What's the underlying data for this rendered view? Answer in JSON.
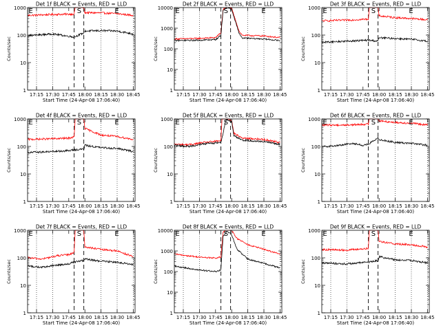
{
  "chart_data": [
    {
      "type": "line",
      "title": "Det 1f BLACK = Events, RED = LLD",
      "xlabel": "Start Time (24-Apr-08 17:06:40)",
      "ylabel": "Counts/sec",
      "yscale": "log",
      "ylim": [
        1,
        1000
      ],
      "xlim": [
        "17:06:40",
        "18:46:40"
      ],
      "x_ticks": [
        "17:15",
        "17:30",
        "17:45",
        "18:00",
        "18:15",
        "18:30",
        "18:45"
      ],
      "y_ticks": [
        "1",
        "10",
        "100",
        "1000"
      ],
      "markers": [
        {
          "label": "E",
          "x": "17:07"
        },
        {
          "label": "S",
          "x": "17:52"
        },
        {
          "label": "E",
          "x": "18:27"
        }
      ],
      "series": [
        {
          "color": "#ff0000",
          "x": [
            "17:07",
            "17:30",
            "17:50",
            "17:51",
            "17:53",
            "17:59",
            "18:00",
            "18:15",
            "18:30",
            "18:45"
          ],
          "values": [
            520,
            560,
            580,
            1200,
            1100,
            1000,
            650,
            640,
            600,
            520
          ]
        },
        {
          "color": "#000000",
          "x": [
            "17:07",
            "17:30",
            "17:50",
            "17:59",
            "18:00",
            "18:15",
            "18:30",
            "18:45"
          ],
          "values": [
            95,
            110,
            85,
            120,
            140,
            145,
            140,
            110
          ]
        }
      ]
    },
    {
      "type": "line",
      "title": "Det 2f BLACK = Events, RED = LLD",
      "xlabel": "Start Time (24-Apr-08 17:06:40)",
      "ylabel": "Counts/sec",
      "yscale": "log",
      "ylim": [
        1,
        10000
      ],
      "xlim": [
        "17:06:40",
        "18:46:40"
      ],
      "x_ticks": [
        "17:15",
        "17:30",
        "17:45",
        "18:00",
        "18:15",
        "18:30",
        "18:45"
      ],
      "y_ticks": [
        "1",
        "10",
        "100",
        "1000",
        "10000"
      ],
      "markers": [
        {
          "label": "E",
          "x": "17:07"
        },
        {
          "label": "S",
          "x": "17:52"
        },
        {
          "label": "E",
          "x": "18:27"
        }
      ],
      "series": [
        {
          "color": "#ff0000",
          "x": [
            "17:07",
            "17:30",
            "17:45",
            "17:50",
            "17:52",
            "17:56",
            "18:00",
            "18:03",
            "18:07",
            "18:10",
            "18:30",
            "18:45"
          ],
          "values": [
            300,
            320,
            350,
            600,
            8000,
            12000,
            9000,
            3000,
            700,
            450,
            420,
            350
          ]
        },
        {
          "color": "#000000",
          "x": [
            "17:07",
            "17:30",
            "17:45",
            "17:50",
            "17:52",
            "17:56",
            "18:00",
            "18:03",
            "18:07",
            "18:10",
            "18:30",
            "18:45"
          ],
          "values": [
            250,
            260,
            280,
            450,
            7000,
            11000,
            8000,
            2500,
            550,
            330,
            300,
            250
          ]
        }
      ]
    },
    {
      "type": "line",
      "title": "Det 3f BLACK = Events, RED = LLD",
      "xlabel": "Start Time (24-Apr-08 17:06:40)",
      "ylabel": "Counts/sec",
      "yscale": "log",
      "ylim": [
        1,
        1000
      ],
      "xlim": [
        "17:06:40",
        "18:46:40"
      ],
      "x_ticks": [
        "17:15",
        "17:30",
        "17:45",
        "18:00",
        "18:15",
        "18:30",
        "18:45"
      ],
      "y_ticks": [
        "1",
        "10",
        "100",
        "1000"
      ],
      "markers": [
        {
          "label": "E",
          "x": "17:07"
        },
        {
          "label": "S",
          "x": "17:52"
        },
        {
          "label": "E",
          "x": "18:27"
        }
      ],
      "series": [
        {
          "color": "#ff0000",
          "x": [
            "17:07",
            "17:30",
            "17:50",
            "17:51",
            "17:53",
            "17:59",
            "18:00",
            "18:15",
            "18:30",
            "18:45"
          ],
          "values": [
            330,
            350,
            380,
            1100,
            1100,
            1050,
            500,
            430,
            400,
            360
          ]
        },
        {
          "color": "#000000",
          "x": [
            "17:07",
            "17:30",
            "17:50",
            "17:59",
            "18:00",
            "18:15",
            "18:30",
            "18:45"
          ],
          "values": [
            55,
            60,
            65,
            60,
            80,
            75,
            70,
            60
          ]
        }
      ]
    },
    {
      "type": "line",
      "title": "Det 4f BLACK = Events, RED = LLD",
      "xlabel": "Start Time (24-Apr-08 17:06:40)",
      "ylabel": "Counts/sec",
      "yscale": "log",
      "ylim": [
        1,
        1000
      ],
      "xlim": [
        "17:06:40",
        "18:46:40"
      ],
      "x_ticks": [
        "17:15",
        "17:30",
        "17:45",
        "18:00",
        "18:15",
        "18:30",
        "18:45"
      ],
      "y_ticks": [
        "1",
        "10",
        "100",
        "1000"
      ],
      "markers": [
        {
          "label": "E",
          "x": "17:07"
        },
        {
          "label": "S",
          "x": "17:52"
        },
        {
          "label": "E",
          "x": "18:27"
        }
      ],
      "series": [
        {
          "color": "#ff0000",
          "x": [
            "17:07",
            "17:30",
            "17:45",
            "17:50",
            "17:51",
            "17:59",
            "18:00",
            "18:15",
            "18:30",
            "18:45"
          ],
          "values": [
            180,
            190,
            200,
            220,
            1100,
            1100,
            450,
            260,
            230,
            180
          ]
        },
        {
          "color": "#000000",
          "x": [
            "17:07",
            "17:30",
            "17:45",
            "17:50",
            "17:59",
            "18:00",
            "18:15",
            "18:30",
            "18:45"
          ],
          "values": [
            60,
            65,
            70,
            75,
            80,
            110,
            90,
            85,
            65
          ]
        }
      ]
    },
    {
      "type": "line",
      "title": "Det 5f BLACK = Events, RED = LLD",
      "xlabel": "Start Time (24-Apr-08 17:06:40)",
      "ylabel": "Counts/sec",
      "yscale": "log",
      "ylim": [
        1,
        1000
      ],
      "xlim": [
        "17:06:40",
        "18:46:40"
      ],
      "x_ticks": [
        "17:15",
        "17:30",
        "17:45",
        "18:00",
        "18:15",
        "18:30",
        "18:45"
      ],
      "y_ticks": [
        "1",
        "10",
        "100",
        "1000"
      ],
      "markers": [
        {
          "label": "E",
          "x": "17:07"
        },
        {
          "label": "S",
          "x": "17:52"
        },
        {
          "label": "E",
          "x": "18:27"
        }
      ],
      "series": [
        {
          "color": "#ff0000",
          "x": [
            "17:07",
            "17:20",
            "17:35",
            "17:50",
            "17:51",
            "17:55",
            "18:00",
            "18:02",
            "18:10",
            "18:30",
            "18:45"
          ],
          "values": [
            120,
            115,
            140,
            160,
            1100,
            1100,
            900,
            300,
            200,
            180,
            140
          ]
        },
        {
          "color": "#000000",
          "x": [
            "17:07",
            "17:20",
            "17:35",
            "17:50",
            "17:55",
            "18:00",
            "18:02",
            "18:10",
            "18:30",
            "18:45"
          ],
          "values": [
            110,
            100,
            125,
            140,
            1000,
            800,
            250,
            170,
            150,
            120
          ]
        }
      ]
    },
    {
      "type": "line",
      "title": "Det 6f BLACK = Events, RED = LLD",
      "xlabel": "Start Time (24-Apr-08 17:06:40)",
      "ylabel": "Counts/sec",
      "yscale": "log",
      "ylim": [
        1,
        1000
      ],
      "xlim": [
        "17:06:40",
        "18:46:40"
      ],
      "x_ticks": [
        "17:15",
        "17:30",
        "17:45",
        "18:00",
        "18:15",
        "18:30",
        "18:45"
      ],
      "y_ticks": [
        "1",
        "10",
        "100",
        "1000"
      ],
      "markers": [
        {
          "label": "E",
          "x": "17:07"
        },
        {
          "label": "S",
          "x": "17:52"
        },
        {
          "label": "E",
          "x": "18:27"
        }
      ],
      "series": [
        {
          "color": "#ff0000",
          "x": [
            "17:07",
            "17:30",
            "17:50",
            "17:51",
            "17:53",
            "17:59",
            "18:00",
            "18:15",
            "18:30",
            "18:45"
          ],
          "values": [
            600,
            600,
            650,
            1100,
            1100,
            1050,
            850,
            750,
            700,
            600
          ]
        },
        {
          "color": "#000000",
          "x": [
            "17:07",
            "17:20",
            "17:35",
            "17:45",
            "17:50",
            "17:59",
            "18:00",
            "18:15",
            "18:30",
            "18:45"
          ],
          "values": [
            100,
            105,
            130,
            110,
            120,
            200,
            180,
            140,
            130,
            110
          ]
        }
      ]
    },
    {
      "type": "line",
      "title": "Det 7f BLACK = Events, RED = LLD",
      "xlabel": "Start Time (24-Apr-08 17:06:40)",
      "ylabel": "Counts/sec",
      "yscale": "log",
      "ylim": [
        1,
        1000
      ],
      "xlim": [
        "17:06:40",
        "18:46:40"
      ],
      "x_ticks": [
        "17:15",
        "17:30",
        "17:45",
        "18:00",
        "18:15",
        "18:30",
        "18:45"
      ],
      "y_ticks": [
        "1",
        "10",
        "100",
        "1000"
      ],
      "markers": [
        {
          "label": "E",
          "x": "17:07"
        },
        {
          "label": "S",
          "x": "17:52"
        },
        {
          "label": "E",
          "x": "18:27"
        }
      ],
      "series": [
        {
          "color": "#ff0000",
          "x": [
            "17:07",
            "17:20",
            "17:35",
            "17:45",
            "17:50",
            "17:51",
            "17:59",
            "18:00",
            "18:15",
            "18:30",
            "18:45"
          ],
          "values": [
            100,
            90,
            120,
            130,
            160,
            1100,
            1100,
            250,
            200,
            180,
            110
          ]
        },
        {
          "color": "#000000",
          "x": [
            "17:07",
            "17:20",
            "17:35",
            "17:45",
            "17:50",
            "17:59",
            "18:00",
            "18:15",
            "18:30",
            "18:45"
          ],
          "values": [
            50,
            45,
            55,
            60,
            70,
            80,
            90,
            75,
            70,
            55
          ]
        }
      ]
    },
    {
      "type": "line",
      "title": "Det 8f BLACK = Events, RED = LLD",
      "xlabel": "Start Time (24-Apr-08 17:06:40)",
      "ylabel": "Counts/sec",
      "yscale": "log",
      "ylim": [
        1,
        10000
      ],
      "xlim": [
        "17:06:40",
        "18:46:40"
      ],
      "x_ticks": [
        "17:15",
        "17:30",
        "17:45",
        "18:00",
        "18:15",
        "18:30",
        "18:45"
      ],
      "y_ticks": [
        "1",
        "10",
        "100",
        "1000",
        "10000"
      ],
      "markers": [
        {
          "label": "E",
          "x": "17:07"
        },
        {
          "label": "S",
          "x": "17:52"
        },
        {
          "label": "E",
          "x": "18:27"
        }
      ],
      "series": [
        {
          "color": "#ff0000",
          "x": [
            "17:07",
            "17:30",
            "17:45",
            "17:50",
            "17:52",
            "17:56",
            "18:00",
            "18:05",
            "18:15",
            "18:30",
            "18:45"
          ],
          "values": [
            700,
            500,
            450,
            500,
            8000,
            12000,
            10000,
            4000,
            2000,
            1200,
            700
          ]
        },
        {
          "color": "#000000",
          "x": [
            "17:07",
            "17:30",
            "17:45",
            "17:50",
            "17:52",
            "17:56",
            "18:00",
            "18:05",
            "18:15",
            "18:30",
            "18:45"
          ],
          "values": [
            180,
            120,
            100,
            120,
            5000,
            9000,
            6000,
            1200,
            400,
            250,
            150
          ]
        }
      ]
    },
    {
      "type": "line",
      "title": "Det 9f BLACK = Events, RED = LLD",
      "xlabel": "Start Time (24-Apr-08 17:06:40)",
      "ylabel": "Counts/sec",
      "yscale": "log",
      "ylim": [
        1,
        1000
      ],
      "xlim": [
        "17:06:40",
        "18:46:40"
      ],
      "x_ticks": [
        "17:15",
        "17:30",
        "17:45",
        "18:00",
        "18:15",
        "18:30",
        "18:45"
      ],
      "y_ticks": [
        "1",
        "10",
        "100",
        "1000"
      ],
      "markers": [
        {
          "label": "E",
          "x": "17:07"
        },
        {
          "label": "S",
          "x": "17:52"
        },
        {
          "label": "E",
          "x": "18:27"
        }
      ],
      "series": [
        {
          "color": "#ff0000",
          "x": [
            "17:07",
            "17:30",
            "17:50",
            "17:51",
            "17:53",
            "17:59",
            "18:00",
            "18:15",
            "18:30",
            "18:45"
          ],
          "values": [
            200,
            190,
            220,
            1100,
            1100,
            1050,
            400,
            320,
            300,
            250
          ]
        },
        {
          "color": "#000000",
          "x": [
            "17:07",
            "17:30",
            "17:50",
            "17:59",
            "18:00",
            "18:15",
            "18:30",
            "18:45"
          ],
          "values": [
            65,
            60,
            70,
            80,
            110,
            85,
            80,
            65
          ]
        }
      ]
    }
  ]
}
